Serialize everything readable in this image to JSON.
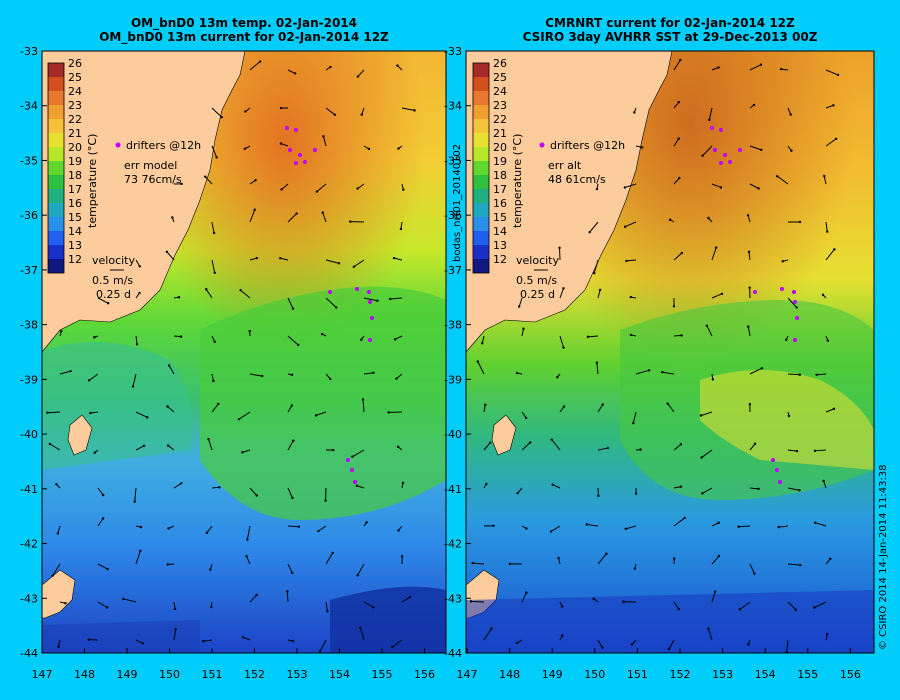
{
  "panels": [
    {
      "id": "left",
      "title_line1": "OM_bnD0 13m temp. 02-Jan-2014",
      "title_line2": "OM_bnD0 13m current for 02-Jan-2014 12Z",
      "drifters_label": "drifters @12h",
      "err_label": "err model",
      "err_value": "73 76cm/s",
      "velocity_label": "velocity",
      "velocity_scale": "0.5 m/s",
      "velocity_time": "0.25 d"
    },
    {
      "id": "right",
      "title_line1": "CMRNRT current for 02-Jan-2014 12Z",
      "title_line2": "CSIRO 3day AVHRR SST at 29-Dec-2013 00Z",
      "drifters_label": "drifters @12h",
      "err_label": "err alt",
      "err_value": "48 61cm/s",
      "velocity_label": "velocity",
      "velocity_scale": "0.5 m/s",
      "velocity_time": "0.25 d"
    }
  ],
  "colorbar": {
    "label": "temperature (°C)",
    "ticks": [
      "26",
      "25",
      "24",
      "23",
      "22",
      "21",
      "20",
      "19",
      "18",
      "17",
      "16",
      "15",
      "14",
      "13",
      "12"
    ],
    "colors": [
      "#a52a2a",
      "#d2501e",
      "#e87830",
      "#f0a030",
      "#f5c23a",
      "#e8e030",
      "#b8e628",
      "#60d830",
      "#30c040",
      "#20b080",
      "#20a8c0",
      "#2890e8",
      "#2060f0",
      "#1830c8",
      "#101880"
    ]
  },
  "y_axis_ticks": [
    "-33",
    "-34",
    "-35",
    "-36",
    "-37",
    "-38",
    "-39",
    "-40",
    "-41",
    "-42",
    "-43",
    "-44"
  ],
  "x_axis_ticks": [
    "147",
    "148",
    "149",
    "150",
    "151",
    "152",
    "153",
    "154",
    "155",
    "156"
  ],
  "side_text_left": "bodas_nrt01_20140102",
  "side_text_right": "© CSIRO 2014   14-Jan-2014 11:43:38",
  "colors": {
    "background": "#00cdfa",
    "land": "#fccc9c",
    "drifter": "#c000ff"
  }
}
